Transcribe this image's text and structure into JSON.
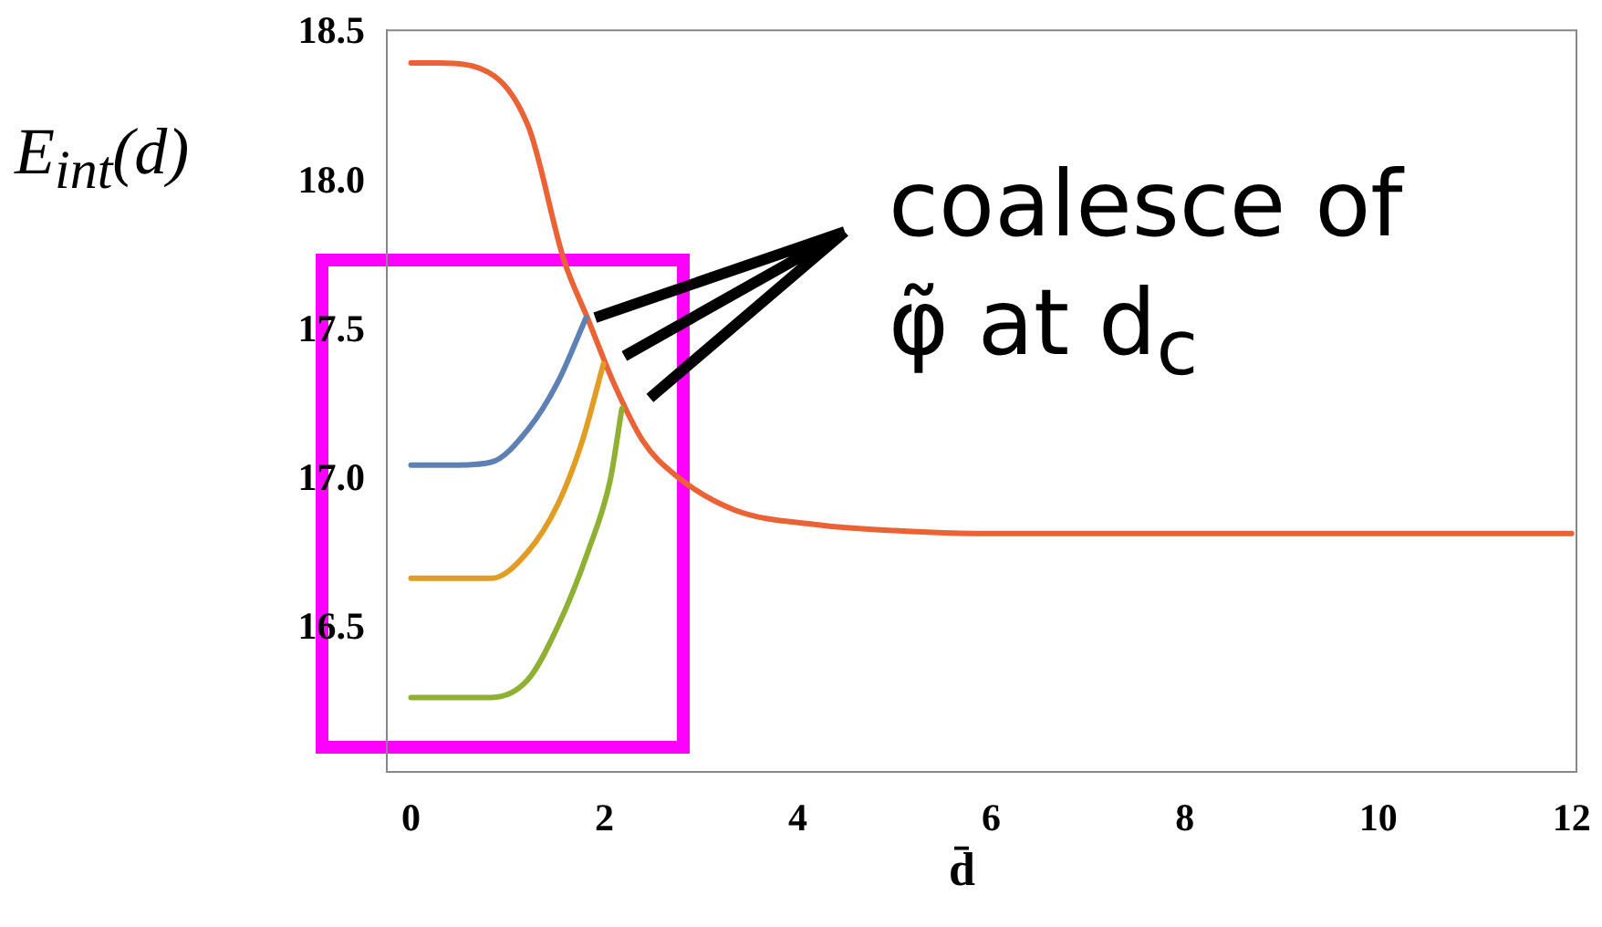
{
  "chart_data": {
    "type": "line",
    "ylabel": "E$_{int}$(d)",
    "xlabel": "d̄",
    "annotations": [
      {
        "text": "coalesce of φ̃ at d$_{c}$",
        "x": 1.81,
        "y": 17.545
      }
    ],
    "xlim": [
      -0.25,
      12.05
    ],
    "ylim": [
      16.02,
      18.51
    ],
    "xticks": [
      0,
      2,
      4,
      6,
      8,
      10,
      12
    ],
    "yticks": [
      {
        "value": 16.5,
        "label": "16.5"
      },
      {
        "value": 17,
        "label": "17.0"
      },
      {
        "value": 17.5,
        "label": "17.5"
      },
      {
        "value": 18,
        "label": "18.0"
      },
      {
        "value": 18.5,
        "label": "18.5"
      }
    ],
    "marker": "none",
    "line_style": "solid",
    "series": [
      {
        "color": "#8fb032",
        "x": [
          0,
          0.45,
          0.83,
          1.21,
          1.52,
          1.83,
          2.06,
          2.18
        ],
        "values": [
          16.27,
          16.27,
          16.27,
          16.33,
          16.51,
          16.76,
          17.0,
          17.24
        ]
      },
      {
        "color": "#e19c24",
        "x": [
          0,
          0.45,
          0.83,
          1.21,
          1.52,
          1.77,
          1.99
        ],
        "values": [
          16.67,
          16.67,
          16.67,
          16.76,
          16.92,
          17.13,
          17.39
        ]
      },
      {
        "color": "#5e81b5",
        "x": [
          0,
          0.45,
          0.83,
          1.21,
          1.52,
          1.81
        ],
        "values": [
          17.05,
          17.05,
          17.06,
          17.17,
          17.33,
          17.545
        ]
      },
      {
        "color": "#eb6235",
        "x": [
          0,
          0.3,
          0.64,
          1.21,
          1.58,
          1.83,
          2.09,
          2.4,
          2.72,
          3.34,
          4.19,
          5,
          6,
          8,
          10,
          12
        ],
        "values": [
          18.4,
          18.4,
          18.39,
          18.19,
          17.74,
          17.54,
          17.33,
          17.13,
          17.02,
          16.9,
          16.85,
          16.83,
          16.82,
          16.82,
          16.82,
          16.82
        ]
      }
    ]
  }
}
